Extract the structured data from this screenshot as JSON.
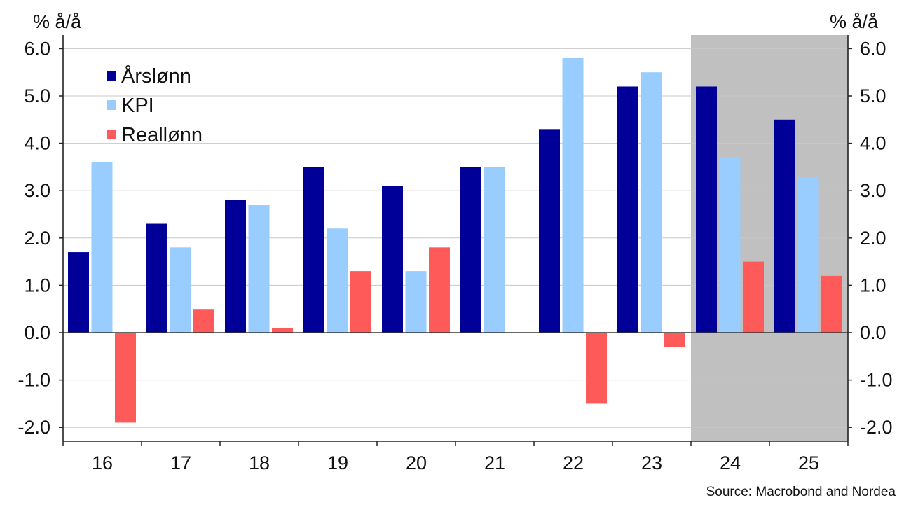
{
  "chart_data": {
    "type": "bar",
    "categories": [
      "16",
      "17",
      "18",
      "19",
      "20",
      "21",
      "22",
      "23",
      "24",
      "25"
    ],
    "series": [
      {
        "name": "Årslønn",
        "color": "#000099",
        "values": [
          1.7,
          2.3,
          2.8,
          3.5,
          3.1,
          3.5,
          4.3,
          5.2,
          5.2,
          4.5
        ]
      },
      {
        "name": "KPI",
        "color": "#99ccff",
        "values": [
          3.6,
          1.8,
          2.7,
          2.2,
          1.3,
          3.5,
          5.8,
          5.5,
          3.7,
          3.3
        ]
      },
      {
        "name": "Reallønn",
        "color": "#ff5a5a",
        "values": [
          -1.9,
          0.5,
          0.1,
          1.3,
          1.8,
          null,
          -1.5,
          -0.3,
          1.5,
          1.2
        ]
      }
    ],
    "ylim": [
      -2.3,
      6.0
    ],
    "yticks": [
      -2.0,
      -1.0,
      0.0,
      1.0,
      2.0,
      3.0,
      4.0,
      5.0,
      6.0
    ],
    "ytick_labels": [
      "-2.0",
      "-1.0",
      "0.0",
      "1.0",
      "2.0",
      "3.0",
      "4.0",
      "5.0",
      "6.0"
    ],
    "ylabel_left": "% å/å",
    "ylabel_right": "% å/å",
    "forecast_shading": {
      "from_category": "24",
      "to_category": "25",
      "color": "#c0c0c0"
    },
    "grid": true,
    "legend_position": "top-left",
    "source": "Source: Macrobond and Nordea"
  }
}
